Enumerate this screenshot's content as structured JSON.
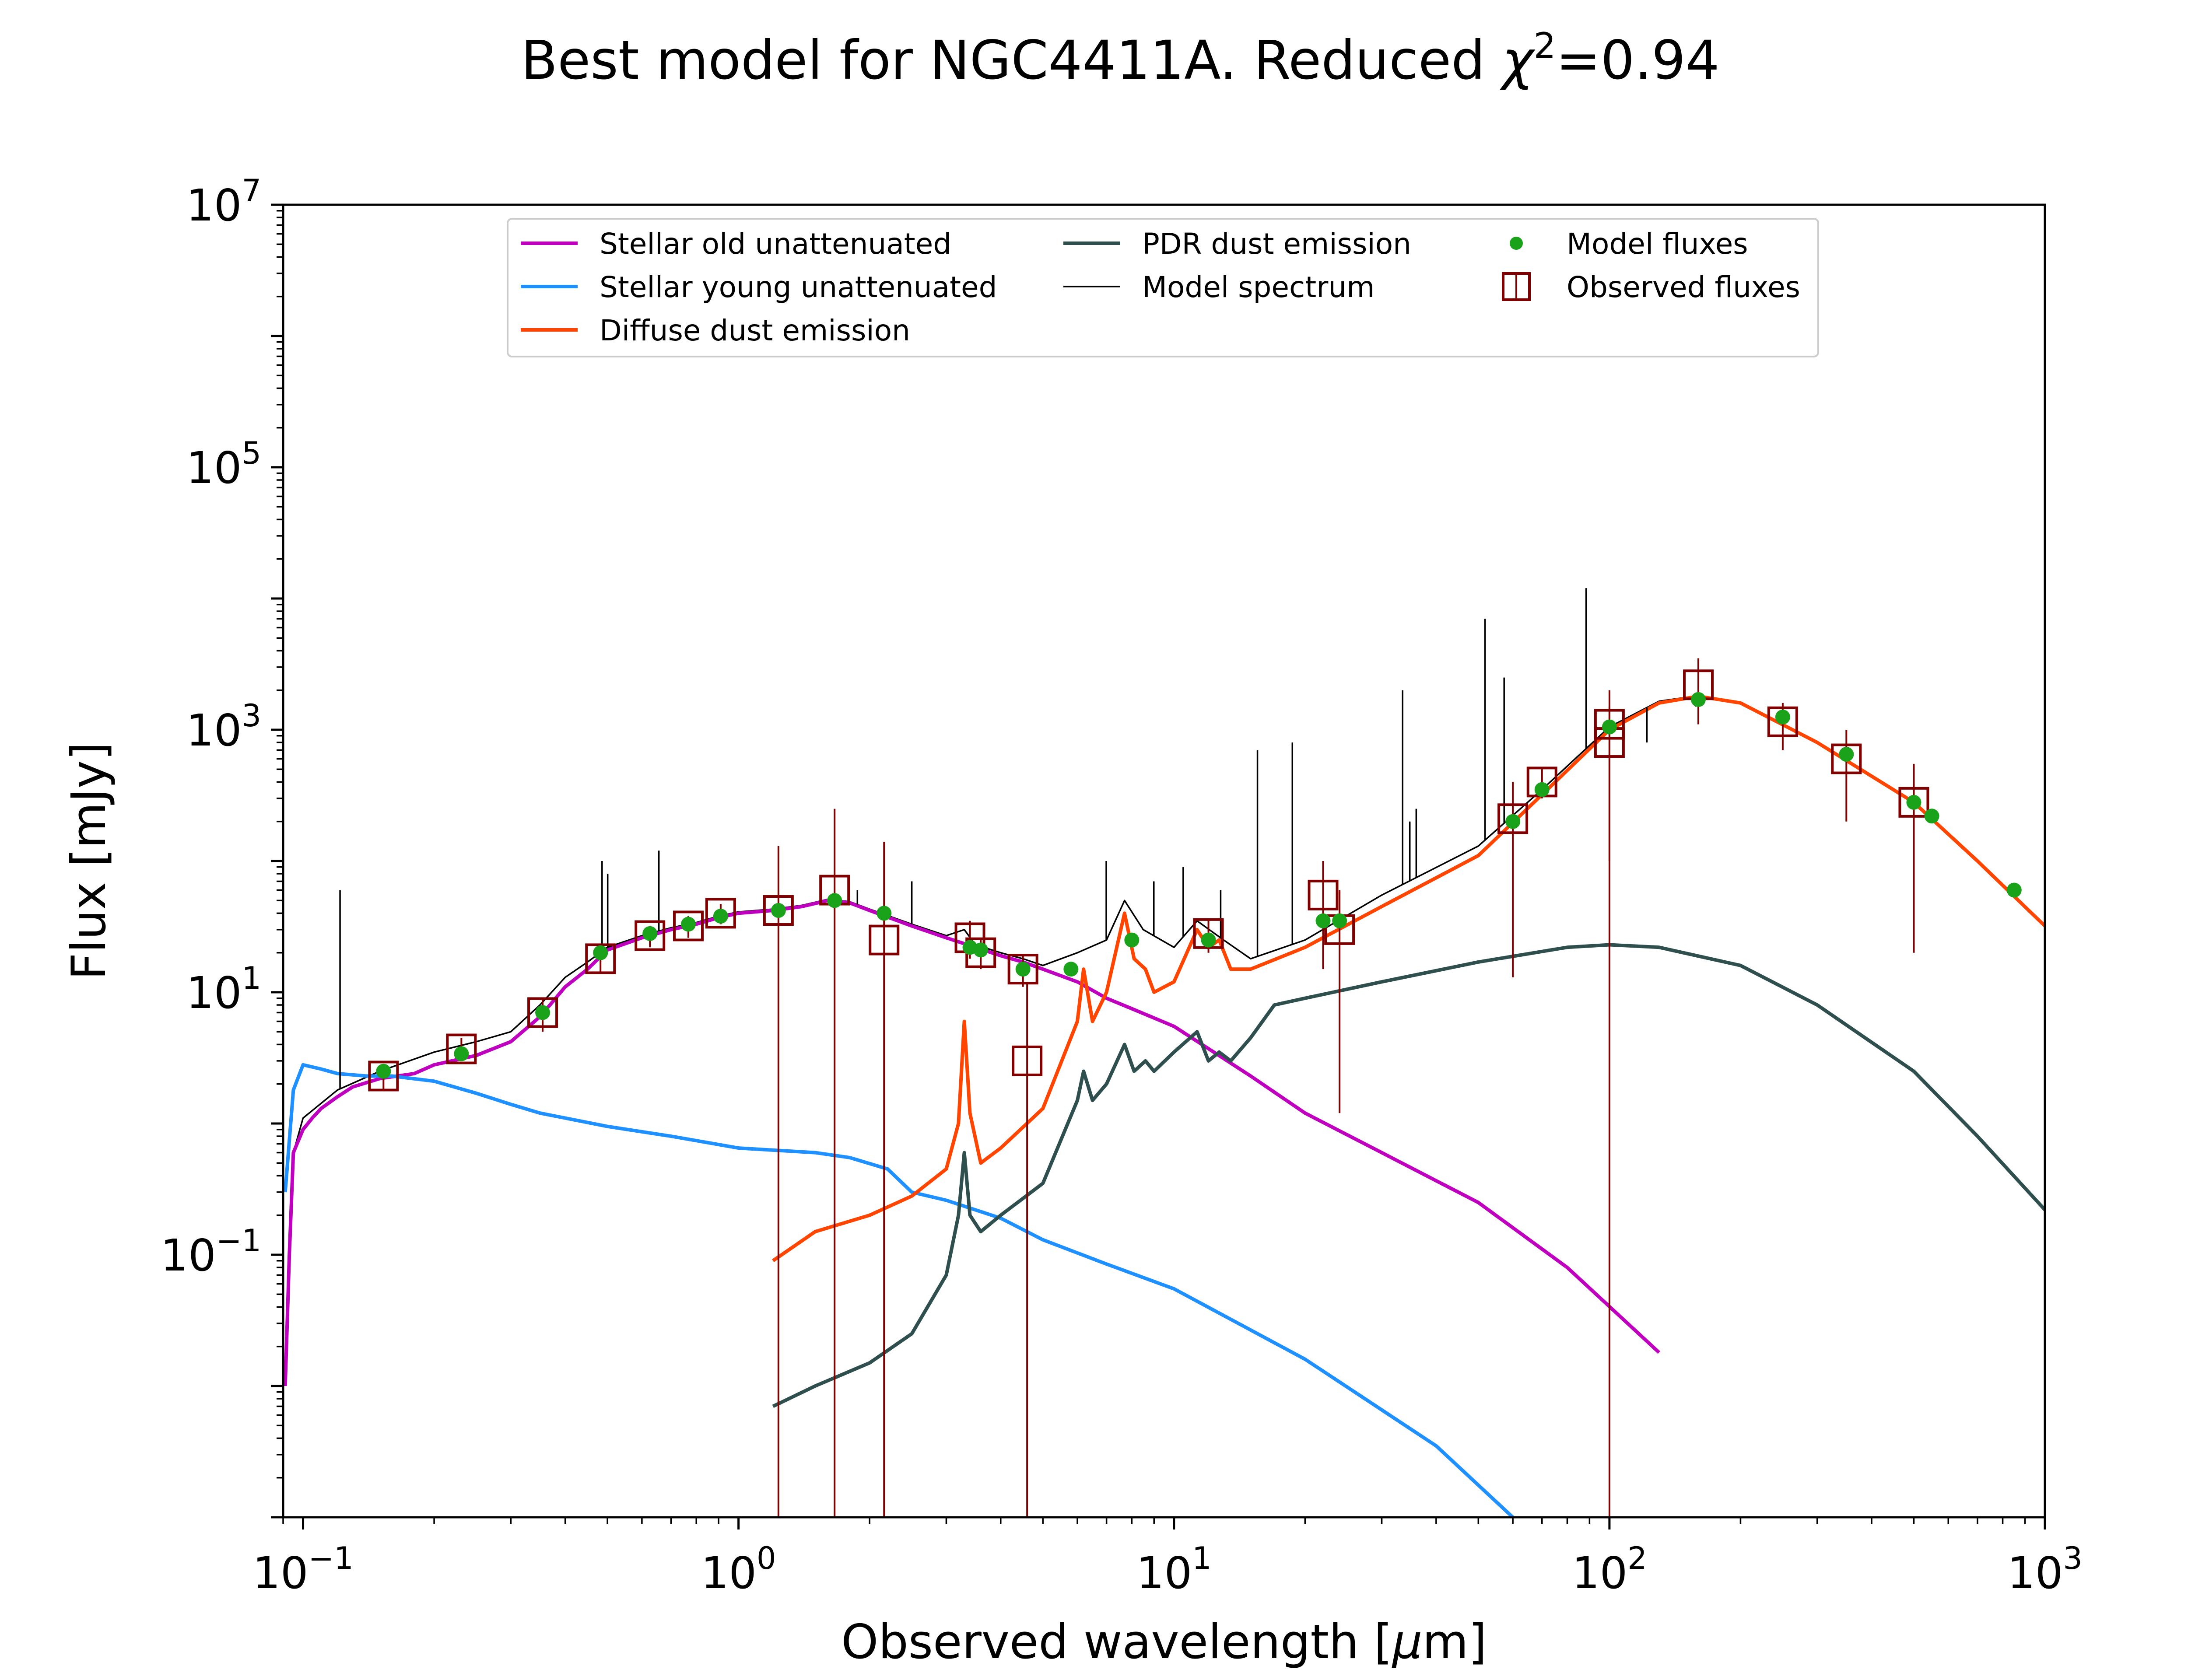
{
  "chart_data": {
    "type": "line",
    "title_main": "Best model for NGC4411A. Reduced ",
    "title_chi": "χ",
    "title_sup": "2",
    "title_tail": "=0.94",
    "xlabel_main": "Observed wavelength [",
    "xlabel_mu": "μ",
    "xlabel_unit": "m]",
    "ylabel": "Flux [mJy]",
    "x_scale": "log",
    "y_scale": "log",
    "xlim": [
      0.09,
      1000
    ],
    "ylim": [
      0.001,
      10000000
    ],
    "grid": false,
    "legend_position": "top-center",
    "x_ticks": [
      {
        "value": 0.1,
        "base": "10",
        "exp": "−1"
      },
      {
        "value": 1,
        "base": "10",
        "exp": "0"
      },
      {
        "value": 10,
        "base": "10",
        "exp": "1"
      },
      {
        "value": 100,
        "base": "10",
        "exp": "2"
      },
      {
        "value": 1000,
        "base": "10",
        "exp": "3"
      }
    ],
    "y_ticks": [
      {
        "value": 0.1,
        "base": "10",
        "exp": "−1"
      },
      {
        "value": 10,
        "base": "10",
        "exp": "1"
      },
      {
        "value": 1000,
        "base": "10",
        "exp": "3"
      },
      {
        "value": 100000,
        "base": "10",
        "exp": "5"
      },
      {
        "value": 10000000,
        "base": "10",
        "exp": "7"
      }
    ],
    "legend": [
      {
        "label": "Stellar old unattenuated",
        "color": "#bf00bf",
        "kind": "line"
      },
      {
        "label": "Stellar young unattenuated",
        "color": "#1e90ff",
        "kind": "line"
      },
      {
        "label": "Diffuse dust emission",
        "color": "#ff4500",
        "kind": "line"
      },
      {
        "label": "PDR dust emission",
        "color": "#2f4f4f",
        "kind": "line"
      },
      {
        "label": "Model spectrum",
        "color": "#000000",
        "kind": "thinline"
      },
      {
        "label": "Model fluxes",
        "color": "#1aa31a",
        "kind": "dot"
      },
      {
        "label": "Observed fluxes",
        "color": "#800000",
        "kind": "square"
      }
    ],
    "series": [
      {
        "name": "Stellar old unattenuated",
        "color": "#bf00bf",
        "points": [
          [
            0.091,
            0.01
          ],
          [
            0.093,
            0.1
          ],
          [
            0.095,
            0.6
          ],
          [
            0.1,
            0.9
          ],
          [
            0.105,
            1.1
          ],
          [
            0.11,
            1.3
          ],
          [
            0.12,
            1.6
          ],
          [
            0.13,
            1.9
          ],
          [
            0.15,
            2.2
          ],
          [
            0.18,
            2.4
          ],
          [
            0.2,
            2.8
          ],
          [
            0.25,
            3.3
          ],
          [
            0.3,
            4.2
          ],
          [
            0.35,
            6.5
          ],
          [
            0.4,
            11
          ],
          [
            0.45,
            15
          ],
          [
            0.5,
            21
          ],
          [
            0.6,
            26
          ],
          [
            0.7,
            30
          ],
          [
            0.8,
            33
          ],
          [
            0.9,
            37
          ],
          [
            1.0,
            40
          ],
          [
            1.2,
            42
          ],
          [
            1.4,
            45
          ],
          [
            1.6,
            50
          ],
          [
            1.8,
            48
          ],
          [
            2.0,
            42
          ],
          [
            2.5,
            32
          ],
          [
            3.0,
            26
          ],
          [
            3.5,
            22
          ],
          [
            4.0,
            19
          ],
          [
            4.5,
            17
          ],
          [
            5.0,
            15
          ],
          [
            6.0,
            12
          ],
          [
            7.0,
            9
          ],
          [
            8.0,
            7.5
          ],
          [
            10.0,
            5.5
          ],
          [
            15.0,
            2.3
          ],
          [
            20.0,
            1.2
          ],
          [
            30.0,
            0.6
          ],
          [
            50.0,
            0.25
          ],
          [
            80.0,
            0.08
          ],
          [
            130.0,
            0.018
          ]
        ]
      },
      {
        "name": "Stellar young unattenuated",
        "color": "#1e90ff",
        "points": [
          [
            0.091,
            0.3
          ],
          [
            0.095,
            1.8
          ],
          [
            0.1,
            2.8
          ],
          [
            0.11,
            2.6
          ],
          [
            0.12,
            2.4
          ],
          [
            0.14,
            2.3
          ],
          [
            0.16,
            2.3
          ],
          [
            0.2,
            2.1
          ],
          [
            0.25,
            1.7
          ],
          [
            0.3,
            1.4
          ],
          [
            0.35,
            1.2
          ],
          [
            0.5,
            0.95
          ],
          [
            0.7,
            0.8
          ],
          [
            1.0,
            0.65
          ],
          [
            1.5,
            0.6
          ],
          [
            1.8,
            0.55
          ],
          [
            2.2,
            0.45
          ],
          [
            2.5,
            0.3
          ],
          [
            3.0,
            0.26
          ],
          [
            4.0,
            0.19
          ],
          [
            5.0,
            0.13
          ],
          [
            7.0,
            0.085
          ],
          [
            10.0,
            0.055
          ],
          [
            20.0,
            0.016
          ],
          [
            40.0,
            0.0035
          ],
          [
            60.0,
            0.001
          ]
        ]
      },
      {
        "name": "Diffuse dust emission",
        "color": "#ff4500",
        "points": [
          [
            1.2,
            0.09
          ],
          [
            1.5,
            0.15
          ],
          [
            2.0,
            0.2
          ],
          [
            2.5,
            0.28
          ],
          [
            3.0,
            0.45
          ],
          [
            3.2,
            1.0
          ],
          [
            3.3,
            6.0
          ],
          [
            3.4,
            1.2
          ],
          [
            3.6,
            0.5
          ],
          [
            4.0,
            0.65
          ],
          [
            5.0,
            1.3
          ],
          [
            6.0,
            6.0
          ],
          [
            6.2,
            15
          ],
          [
            6.5,
            6
          ],
          [
            7.0,
            10
          ],
          [
            7.7,
            40
          ],
          [
            8.1,
            18
          ],
          [
            8.6,
            15
          ],
          [
            9.0,
            10
          ],
          [
            10.0,
            12
          ],
          [
            11.3,
            30
          ],
          [
            12.0,
            22
          ],
          [
            12.7,
            25
          ],
          [
            13.5,
            15
          ],
          [
            15.0,
            15
          ],
          [
            20.0,
            22
          ],
          [
            30.0,
            45
          ],
          [
            50.0,
            110
          ],
          [
            70.0,
            320
          ],
          [
            100.0,
            1000
          ],
          [
            130.0,
            1600
          ],
          [
            160.0,
            1800
          ],
          [
            200.0,
            1600
          ],
          [
            300.0,
            800
          ],
          [
            500.0,
            280
          ],
          [
            700.0,
            100
          ],
          [
            1000.0,
            32
          ]
        ]
      },
      {
        "name": "PDR dust emission",
        "color": "#2f4f4f",
        "points": [
          [
            1.2,
            0.007
          ],
          [
            1.5,
            0.01
          ],
          [
            2.0,
            0.015
          ],
          [
            2.5,
            0.025
          ],
          [
            3.0,
            0.07
          ],
          [
            3.2,
            0.2
          ],
          [
            3.3,
            0.6
          ],
          [
            3.4,
            0.2
          ],
          [
            3.6,
            0.15
          ],
          [
            4.0,
            0.2
          ],
          [
            5.0,
            0.35
          ],
          [
            6.0,
            1.5
          ],
          [
            6.2,
            2.5
          ],
          [
            6.5,
            1.5
          ],
          [
            7.0,
            2.0
          ],
          [
            7.7,
            4.0
          ],
          [
            8.1,
            2.5
          ],
          [
            8.6,
            3.0
          ],
          [
            9.0,
            2.5
          ],
          [
            10.0,
            3.5
          ],
          [
            11.3,
            5.0
          ],
          [
            12.0,
            3.0
          ],
          [
            12.7,
            3.5
          ],
          [
            13.5,
            3.0
          ],
          [
            15.0,
            4.5
          ],
          [
            17.0,
            8.0
          ],
          [
            20.0,
            9.0
          ],
          [
            30.0,
            12
          ],
          [
            50.0,
            17
          ],
          [
            80.0,
            22
          ],
          [
            100.0,
            23
          ],
          [
            130.0,
            22
          ],
          [
            200.0,
            16
          ],
          [
            300.0,
            8
          ],
          [
            500.0,
            2.5
          ],
          [
            700.0,
            0.8
          ],
          [
            1000.0,
            0.22
          ]
        ]
      },
      {
        "name": "Model spectrum",
        "color": "#000000",
        "points": [
          [
            0.091,
            0.01
          ],
          [
            0.093,
            0.1
          ],
          [
            0.095,
            0.6
          ],
          [
            0.1,
            1.1
          ],
          [
            0.12,
            1.8
          ],
          [
            0.15,
            2.5
          ],
          [
            0.2,
            3.5
          ],
          [
            0.25,
            4.2
          ],
          [
            0.3,
            5.0
          ],
          [
            0.35,
            8.0
          ],
          [
            0.4,
            13
          ],
          [
            0.45,
            17
          ],
          [
            0.5,
            22
          ],
          [
            0.6,
            27
          ],
          [
            0.7,
            31
          ],
          [
            0.8,
            34
          ],
          [
            0.9,
            38
          ],
          [
            1.0,
            41
          ],
          [
            1.2,
            43
          ],
          [
            1.4,
            46
          ],
          [
            1.6,
            51
          ],
          [
            1.8,
            49
          ],
          [
            2.0,
            43
          ],
          [
            2.5,
            33
          ],
          [
            3.0,
            27
          ],
          [
            3.3,
            30
          ],
          [
            3.5,
            23
          ],
          [
            4.0,
            20
          ],
          [
            4.5,
            18
          ],
          [
            5.0,
            16
          ],
          [
            6.0,
            20
          ],
          [
            7.0,
            25
          ],
          [
            7.7,
            50
          ],
          [
            8.5,
            30
          ],
          [
            10.0,
            22
          ],
          [
            11.3,
            35
          ],
          [
            13.0,
            25
          ],
          [
            15.0,
            18
          ],
          [
            20.0,
            25
          ],
          [
            30.0,
            55
          ],
          [
            50.0,
            130
          ],
          [
            70.0,
            350
          ],
          [
            100.0,
            1050
          ],
          [
            130.0,
            1650
          ],
          [
            160.0,
            1820
          ],
          [
            200.0,
            1620
          ],
          [
            300.0,
            810
          ],
          [
            500.0,
            285
          ],
          [
            700.0,
            100
          ],
          [
            1000.0,
            32
          ]
        ]
      }
    ],
    "emission_lines": [
      [
        0.1216,
        60
      ],
      [
        0.486,
        100
      ],
      [
        0.5007,
        80
      ],
      [
        0.6563,
        120
      ],
      [
        1.875,
        60
      ],
      [
        2.5,
        70
      ],
      [
        6.99,
        100
      ],
      [
        8.99,
        70
      ],
      [
        10.5,
        90
      ],
      [
        12.8,
        60
      ],
      [
        15.55,
        700
      ],
      [
        18.7,
        800
      ],
      [
        33.5,
        2000
      ],
      [
        34.8,
        200
      ],
      [
        36.0,
        250
      ],
      [
        51.8,
        7000
      ],
      [
        57.3,
        2500
      ],
      [
        88.4,
        12000
      ],
      [
        121.9,
        800
      ],
      [
        157.7,
        1500
      ]
    ],
    "model_fluxes": [
      [
        0.153,
        2.5
      ],
      [
        0.231,
        3.4
      ],
      [
        0.355,
        7
      ],
      [
        0.482,
        20
      ],
      [
        0.626,
        28
      ],
      [
        0.767,
        33
      ],
      [
        0.91,
        38
      ],
      [
        1.235,
        42
      ],
      [
        1.662,
        50
      ],
      [
        2.159,
        40
      ],
      [
        3.4,
        22
      ],
      [
        3.6,
        21
      ],
      [
        4.5,
        15
      ],
      [
        5.8,
        15
      ],
      [
        8.0,
        25
      ],
      [
        12,
        25
      ],
      [
        22,
        35
      ],
      [
        24,
        35
      ],
      [
        60,
        200
      ],
      [
        70,
        350
      ],
      [
        100,
        1050
      ],
      [
        160,
        1700
      ],
      [
        250,
        1250
      ],
      [
        350,
        650
      ],
      [
        500,
        280
      ],
      [
        550,
        220
      ],
      [
        850,
        60
      ]
    ],
    "observed_fluxes": [
      {
        "x": 0.153,
        "y": 2.3,
        "lo": 1.8,
        "hi": 2.8
      },
      {
        "x": 0.231,
        "y": 3.7,
        "lo": 3.0,
        "hi": 4.5
      },
      {
        "x": 0.355,
        "y": 7.0,
        "lo": 5.0,
        "hi": 9.0
      },
      {
        "x": 0.482,
        "y": 18,
        "lo": 14,
        "hi": 23
      },
      {
        "x": 0.626,
        "y": 27,
        "lo": 22,
        "hi": 32
      },
      {
        "x": 0.767,
        "y": 32,
        "lo": 26,
        "hi": 38
      },
      {
        "x": 0.91,
        "y": 40,
        "lo": 33,
        "hi": 47
      },
      {
        "x": 1.235,
        "y": 42,
        "lo": 0.001,
        "hi": 130
      },
      {
        "x": 1.662,
        "y": 60,
        "lo": 0.001,
        "hi": 250
      },
      {
        "x": 2.159,
        "y": 25,
        "lo": 0.001,
        "hi": 140
      },
      {
        "x": 3.4,
        "y": 26,
        "lo": 18,
        "hi": 35
      },
      {
        "x": 3.6,
        "y": 20,
        "lo": 15,
        "hi": 26
      },
      {
        "x": 4.5,
        "y": 15,
        "lo": 11,
        "hi": 19
      },
      {
        "x": 4.6,
        "y": 3.0,
        "lo": 0.001,
        "hi": 12
      },
      {
        "x": 12,
        "y": 28,
        "lo": 20,
        "hi": 36
      },
      {
        "x": 22,
        "y": 55,
        "lo": 15,
        "hi": 100
      },
      {
        "x": 24,
        "y": 30,
        "lo": 1.2,
        "hi": 60
      },
      {
        "x": 60,
        "y": 210,
        "lo": 13,
        "hi": 400
      },
      {
        "x": 70,
        "y": 400,
        "lo": 300,
        "hi": 500
      },
      {
        "x": 100,
        "y": 1100,
        "lo": 100,
        "hi": 2000
      },
      {
        "x": 100,
        "y": 800,
        "lo": 0.001,
        "hi": 1500
      },
      {
        "x": 160,
        "y": 2200,
        "lo": 1100,
        "hi": 3500
      },
      {
        "x": 250,
        "y": 1150,
        "lo": 700,
        "hi": 1600
      },
      {
        "x": 350,
        "y": 600,
        "lo": 200,
        "hi": 1000
      },
      {
        "x": 500,
        "y": 280,
        "lo": 20,
        "hi": 550
      }
    ]
  }
}
